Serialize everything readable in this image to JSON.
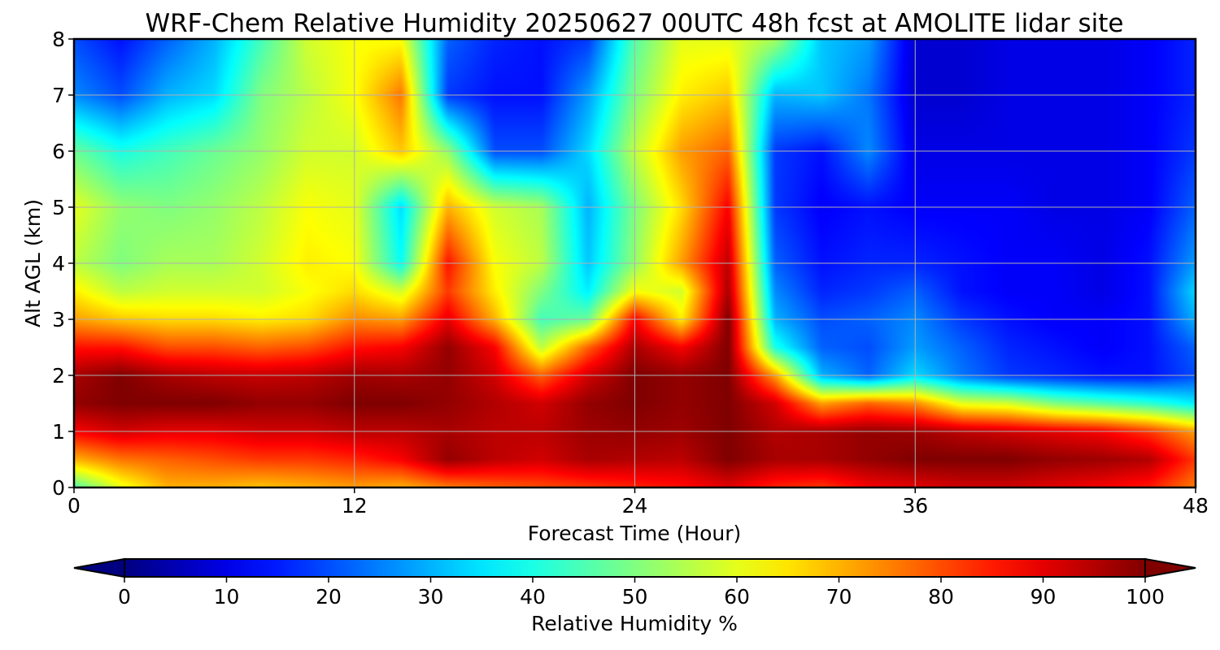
{
  "chart_data": {
    "type": "heatmap",
    "title": "WRF-Chem Relative Humidity 20250627 00UTC 48h fcst at AMOLITE lidar site",
    "xlabel": "Forecast Time (Hour)",
    "ylabel": "Alt AGL (km)",
    "xlim": [
      0,
      48
    ],
    "ylim": [
      0,
      8
    ],
    "xticks": [
      "0",
      "12",
      "24",
      "36",
      "48"
    ],
    "yticks": [
      "0",
      "1",
      "2",
      "3",
      "4",
      "5",
      "6",
      "7",
      "8"
    ],
    "grid": true,
    "colorbar": {
      "label": "Relative Humidity %",
      "ticks": [
        "0",
        "10",
        "20",
        "30",
        "40",
        "50",
        "60",
        "70",
        "80",
        "90",
        "100"
      ],
      "range": [
        0,
        100
      ],
      "extend": "both",
      "colormap": "jet"
    },
    "x": [
      0,
      2,
      4,
      6,
      8,
      10,
      12,
      14,
      16,
      18,
      20,
      22,
      24,
      26,
      28,
      30,
      32,
      34,
      36,
      38,
      40,
      42,
      44,
      46,
      48
    ],
    "y": [
      0,
      0.5,
      1,
      1.5,
      2,
      2.5,
      3,
      3.5,
      4,
      5,
      6,
      7,
      8
    ],
    "z": [
      [
        45,
        60,
        70,
        70,
        68,
        70,
        72,
        70,
        75,
        78,
        80,
        82,
        84,
        86,
        90,
        84,
        82,
        88,
        90,
        92,
        92,
        90,
        88,
        85,
        75
      ],
      [
        70,
        76,
        78,
        80,
        82,
        82,
        84,
        88,
        98,
        94,
        92,
        96,
        95,
        94,
        100,
        96,
        96,
        98,
        100,
        100,
        100,
        98,
        97,
        95,
        82
      ],
      [
        88,
        92,
        90,
        90,
        92,
        92,
        94,
        94,
        96,
        94,
        94,
        97,
        98,
        97,
        100,
        95,
        96,
        98,
        97,
        94,
        92,
        90,
        88,
        82,
        72
      ],
      [
        98,
        100,
        100,
        100,
        98,
        98,
        100,
        100,
        98,
        95,
        92,
        98,
        100,
        98,
        100,
        92,
        72,
        78,
        74,
        60,
        58,
        50,
        46,
        42,
        36
      ],
      [
        96,
        100,
        96,
        94,
        93,
        94,
        97,
        96,
        98,
        92,
        78,
        92,
        100,
        98,
        100,
        72,
        30,
        22,
        34,
        24,
        18,
        16,
        14,
        14,
        20
      ],
      [
        86,
        86,
        80,
        80,
        78,
        80,
        86,
        88,
        98,
        88,
        56,
        78,
        96,
        88,
        100,
        40,
        22,
        20,
        28,
        22,
        16,
        14,
        12,
        14,
        22
      ],
      [
        72,
        68,
        66,
        66,
        64,
        66,
        74,
        72,
        90,
        70,
        44,
        48,
        88,
        64,
        100,
        30,
        20,
        22,
        26,
        18,
        14,
        12,
        12,
        14,
        30
      ],
      [
        64,
        56,
        58,
        58,
        58,
        62,
        66,
        58,
        82,
        64,
        50,
        36,
        62,
        58,
        96,
        26,
        16,
        18,
        22,
        14,
        12,
        12,
        10,
        14,
        34
      ],
      [
        56,
        50,
        54,
        54,
        58,
        64,
        62,
        38,
        86,
        62,
        56,
        32,
        52,
        72,
        94,
        22,
        14,
        16,
        16,
        14,
        12,
        12,
        10,
        14,
        28
      ],
      [
        60,
        52,
        50,
        52,
        56,
        62,
        60,
        34,
        70,
        58,
        54,
        30,
        50,
        66,
        88,
        18,
        12,
        14,
        12,
        12,
        12,
        10,
        10,
        12,
        22
      ],
      [
        48,
        40,
        44,
        48,
        52,
        58,
        58,
        68,
        52,
        20,
        20,
        34,
        56,
        72,
        78,
        18,
        14,
        26,
        10,
        10,
        10,
        10,
        10,
        12,
        18
      ],
      [
        26,
        20,
        30,
        34,
        50,
        56,
        62,
        76,
        18,
        14,
        14,
        28,
        50,
        64,
        68,
        30,
        32,
        24,
        8,
        8,
        10,
        10,
        10,
        12,
        16
      ],
      [
        20,
        14,
        22,
        30,
        44,
        58,
        62,
        62,
        22,
        16,
        14,
        18,
        46,
        60,
        60,
        54,
        32,
        28,
        8,
        8,
        10,
        10,
        10,
        12,
        16
      ]
    ]
  }
}
